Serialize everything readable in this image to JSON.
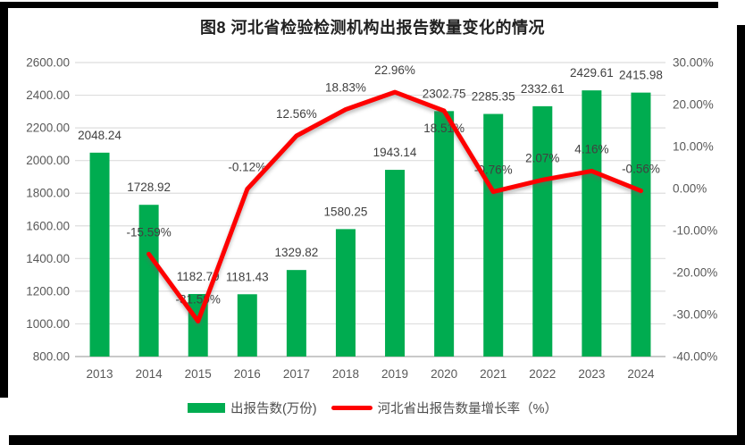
{
  "page": {
    "frame_color": "#000000",
    "background": "#ffffff"
  },
  "chart_data": {
    "type": "bar+line",
    "title": "图8 河北省检验检测机构出报告数量变化的情况",
    "categories": [
      "2013",
      "2014",
      "2015",
      "2016",
      "2017",
      "2018",
      "2019",
      "2020",
      "2021",
      "2022",
      "2023",
      "2024"
    ],
    "series": [
      {
        "name": "出报告数(万份)",
        "chart_type": "bar",
        "axis": "left",
        "color": "#00AC50",
        "values": [
          2048.24,
          1728.92,
          1182.79,
          1181.43,
          1329.82,
          1580.25,
          1943.14,
          2302.75,
          2285.35,
          2332.61,
          2429.61,
          2415.98
        ],
        "data_labels": [
          "2048.24",
          "1728.92",
          "1182.79",
          "1181.43",
          "1329.82",
          "1580.25",
          "1943.14",
          "2302.75",
          "2285.35",
          "2332.61",
          "2429.61",
          "2415.98"
        ]
      },
      {
        "name": "河北省出报告数量增长率（%）",
        "chart_type": "line",
        "axis": "right",
        "color": "#FE0000",
        "values": [
          null,
          -15.59,
          -31.59,
          -0.12,
          12.56,
          18.83,
          22.96,
          18.51,
          -0.76,
          2.07,
          4.16,
          -0.56
        ],
        "data_labels": [
          null,
          "-15.59%",
          "-31.59%",
          "-0.12%",
          "12.56%",
          "18.83%",
          "22.96%",
          "18.51%",
          "-0.76%",
          "2.07%",
          "4.16%",
          "-0.56%"
        ],
        "label_positions": [
          null,
          "above",
          "above",
          "above",
          "above",
          "above",
          "above",
          "below",
          "above",
          "above",
          "above",
          "above"
        ]
      }
    ],
    "left_axis": {
      "min": 800,
      "max": 2600,
      "step": 200,
      "ticks": [
        "2600.00",
        "2400.00",
        "2200.00",
        "2000.00",
        "1800.00",
        "1600.00",
        "1400.00",
        "1200.00",
        "1000.00",
        "800.00"
      ]
    },
    "right_axis": {
      "min": -40,
      "max": 30,
      "step": 10,
      "ticks": [
        "30.00%",
        "20.00%",
        "10.00%",
        "0.00%",
        "-10.00%",
        "-20.00%",
        "-30.00%",
        "-40.00%"
      ]
    },
    "grid": true,
    "legend_position": "bottom",
    "colors": {
      "gridline": "#DEDEDE",
      "axis_line": "#C9C9C9",
      "tick_text": "#595959",
      "data_label_text": "#404040"
    }
  }
}
